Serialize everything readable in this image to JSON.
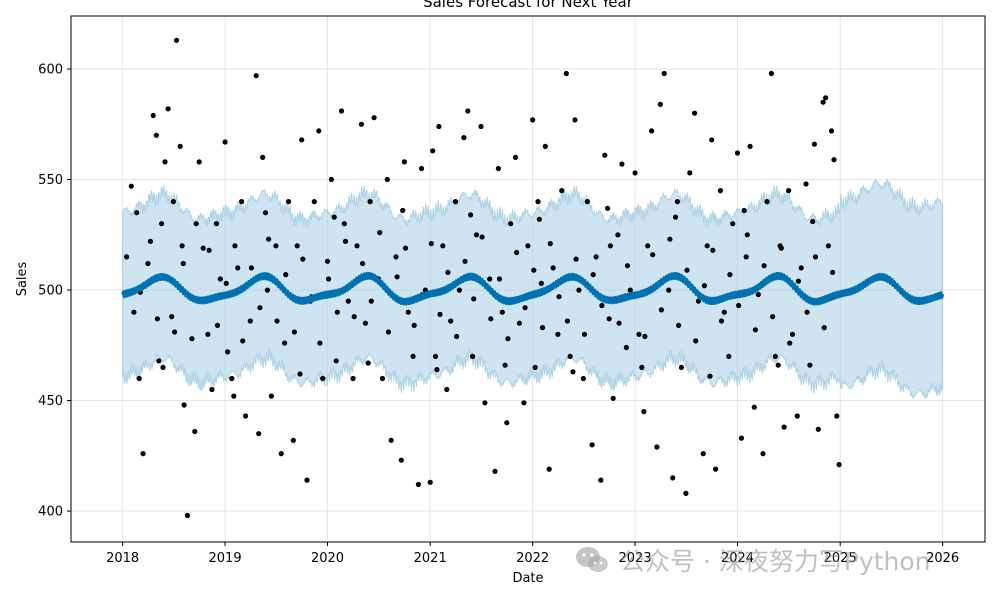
{
  "chart_data": {
    "type": "scatter",
    "title": "Sales Forecast for Next Year",
    "xlabel": "Date",
    "ylabel": "Sales",
    "xlim": [
      "2017-07-01",
      "2026-06-01"
    ],
    "ylim": [
      386,
      624
    ],
    "grid": true,
    "x_ticks": [
      "2018",
      "2019",
      "2020",
      "2021",
      "2022",
      "2023",
      "2024",
      "2025",
      "2026"
    ],
    "y_ticks": [
      400,
      450,
      500,
      550,
      600
    ],
    "forecast": {
      "start": "2018-01-01",
      "end": "2026-01-01",
      "history_end": "2024-12-31",
      "trend": 500,
      "yearly": [
        {
          "amplitude": 5,
          "period_years": 1,
          "phase_years": 0.1
        },
        {
          "amplitude": 1.5,
          "period_years": 0.5,
          "phase_years": 0.3
        }
      ],
      "weekly_amplitude": 1.4,
      "interval": {
        "lower": -37,
        "upper": 37,
        "future_lower": -42,
        "future_upper": 42
      }
    },
    "series": [
      {
        "values": [
          [
            "2018-02-01",
            547
          ],
          [
            "2018-02-10",
            490
          ],
          [
            "2018-03-01",
            460
          ],
          [
            "2018-03-15",
            426
          ],
          [
            "2018-04-01",
            512
          ],
          [
            "2018-04-20",
            579
          ],
          [
            "2018-05-01",
            570
          ],
          [
            "2018-05-10",
            468
          ],
          [
            "2018-05-20",
            530
          ],
          [
            "2018-06-01",
            558
          ],
          [
            "2018-06-12",
            582
          ],
          [
            "2018-06-25",
            488
          ],
          [
            "2018-07-01",
            540
          ],
          [
            "2018-07-12",
            613
          ],
          [
            "2018-07-25",
            565
          ],
          [
            "2018-08-01",
            520
          ],
          [
            "2018-08-08",
            448
          ],
          [
            "2018-08-20",
            398
          ],
          [
            "2018-09-01",
            497
          ],
          [
            "2018-09-15",
            436
          ],
          [
            "2018-10-01",
            558
          ],
          [
            "2018-10-15",
            519
          ],
          [
            "2018-11-01",
            480
          ],
          [
            "2018-11-15",
            455
          ],
          [
            "2018-12-01",
            530
          ],
          [
            "2018-12-15",
            505
          ],
          [
            "2019-01-01",
            567
          ],
          [
            "2019-01-10",
            472
          ],
          [
            "2019-02-01",
            452
          ],
          [
            "2019-02-15",
            510
          ],
          [
            "2019-03-01",
            540
          ],
          [
            "2019-03-15",
            443
          ],
          [
            "2019-04-01",
            486
          ],
          [
            "2019-04-22",
            597
          ],
          [
            "2019-05-01",
            435
          ],
          [
            "2019-05-15",
            560
          ],
          [
            "2019-06-01",
            500
          ],
          [
            "2019-06-15",
            452
          ],
          [
            "2019-07-01",
            520
          ],
          [
            "2019-07-20",
            426
          ],
          [
            "2019-08-01",
            476
          ],
          [
            "2019-08-15",
            540
          ],
          [
            "2019-09-01",
            432
          ],
          [
            "2019-09-15",
            520
          ],
          [
            "2019-10-01",
            568
          ],
          [
            "2019-10-20",
            414
          ],
          [
            "2019-11-01",
            495
          ],
          [
            "2019-11-15",
            540
          ],
          [
            "2019-12-01",
            572
          ],
          [
            "2019-12-15",
            460
          ],
          [
            "2020-01-01",
            513
          ],
          [
            "2020-01-15",
            550
          ],
          [
            "2020-02-01",
            468
          ],
          [
            "2020-02-20",
            581
          ],
          [
            "2020-03-01",
            530
          ],
          [
            "2020-03-15",
            495
          ],
          [
            "2020-04-01",
            460
          ],
          [
            "2020-04-15",
            520
          ],
          [
            "2020-05-01",
            575
          ],
          [
            "2020-05-15",
            485
          ],
          [
            "2020-06-01",
            540
          ],
          [
            "2020-06-15",
            578
          ],
          [
            "2020-07-01",
            505
          ],
          [
            "2020-07-15",
            460
          ],
          [
            "2020-08-01",
            550
          ],
          [
            "2020-08-15",
            432
          ],
          [
            "2020-09-01",
            515
          ],
          [
            "2020-09-20",
            423
          ],
          [
            "2020-10-01",
            558
          ],
          [
            "2020-10-15",
            490
          ],
          [
            "2020-11-01",
            470
          ],
          [
            "2020-11-20",
            412
          ],
          [
            "2020-12-01",
            555
          ],
          [
            "2020-12-15",
            500
          ],
          [
            "2021-01-01",
            413
          ],
          [
            "2021-01-10",
            563
          ],
          [
            "2021-01-20",
            470
          ],
          [
            "2021-02-01",
            574
          ],
          [
            "2021-02-15",
            520
          ],
          [
            "2021-03-01",
            455
          ],
          [
            "2021-03-15",
            486
          ],
          [
            "2021-04-01",
            540
          ],
          [
            "2021-04-15",
            500
          ],
          [
            "2021-05-01",
            569
          ],
          [
            "2021-05-15",
            581
          ],
          [
            "2021-06-01",
            470
          ],
          [
            "2021-06-15",
            525
          ],
          [
            "2021-07-01",
            574
          ],
          [
            "2021-07-15",
            449
          ],
          [
            "2021-08-01",
            505
          ],
          [
            "2021-08-20",
            418
          ],
          [
            "2021-09-01",
            555
          ],
          [
            "2021-09-15",
            490
          ],
          [
            "2021-10-01",
            440
          ],
          [
            "2021-10-15",
            530
          ],
          [
            "2021-11-01",
            560
          ],
          [
            "2021-11-15",
            485
          ],
          [
            "2021-12-01",
            449
          ],
          [
            "2021-12-15",
            520
          ],
          [
            "2022-01-01",
            577
          ],
          [
            "2022-01-10",
            465
          ],
          [
            "2022-01-20",
            540
          ],
          [
            "2022-02-01",
            503
          ],
          [
            "2022-02-15",
            565
          ],
          [
            "2022-03-01",
            419
          ],
          [
            "2022-03-15",
            510
          ],
          [
            "2022-04-01",
            480
          ],
          [
            "2022-04-15",
            545
          ],
          [
            "2022-05-01",
            598
          ],
          [
            "2022-05-15",
            470
          ],
          [
            "2022-06-01",
            577
          ],
          [
            "2022-06-15",
            500
          ],
          [
            "2022-07-01",
            460
          ],
          [
            "2022-07-15",
            540
          ],
          [
            "2022-08-01",
            430
          ],
          [
            "2022-08-15",
            515
          ],
          [
            "2022-09-01",
            414
          ],
          [
            "2022-09-15",
            561
          ],
          [
            "2022-10-01",
            487
          ],
          [
            "2022-10-15",
            451
          ],
          [
            "2022-11-01",
            525
          ],
          [
            "2022-11-15",
            557
          ],
          [
            "2022-12-01",
            474
          ],
          [
            "2022-12-15",
            500
          ],
          [
            "2023-01-01",
            553
          ],
          [
            "2023-01-15",
            480
          ],
          [
            "2023-02-01",
            445
          ],
          [
            "2023-02-15",
            520
          ],
          [
            "2023-03-01",
            572
          ],
          [
            "2023-03-20",
            429
          ],
          [
            "2023-04-01",
            584
          ],
          [
            "2023-04-15",
            598
          ],
          [
            "2023-05-01",
            500
          ],
          [
            "2023-05-15",
            415
          ],
          [
            "2023-06-01",
            540
          ],
          [
            "2023-06-15",
            465
          ],
          [
            "2023-07-01",
            408
          ],
          [
            "2023-07-15",
            553
          ],
          [
            "2023-08-01",
            580
          ],
          [
            "2023-08-15",
            495
          ],
          [
            "2023-09-01",
            426
          ],
          [
            "2023-09-15",
            520
          ],
          [
            "2023-10-01",
            568
          ],
          [
            "2023-10-15",
            419
          ],
          [
            "2023-11-01",
            545
          ],
          [
            "2023-11-15",
            490
          ],
          [
            "2023-12-01",
            470
          ],
          [
            "2023-12-15",
            530
          ],
          [
            "2024-01-01",
            562
          ],
          [
            "2024-01-15",
            433
          ],
          [
            "2024-02-01",
            515
          ],
          [
            "2024-02-15",
            565
          ],
          [
            "2024-03-01",
            447
          ],
          [
            "2024-03-15",
            498
          ],
          [
            "2024-04-01",
            426
          ],
          [
            "2024-04-15",
            540
          ],
          [
            "2024-05-01",
            598
          ],
          [
            "2024-05-15",
            470
          ],
          [
            "2024-06-01",
            520
          ],
          [
            "2024-06-15",
            438
          ],
          [
            "2024-07-01",
            545
          ],
          [
            "2024-07-15",
            480
          ],
          [
            "2024-08-01",
            443
          ],
          [
            "2024-08-15",
            510
          ],
          [
            "2024-09-01",
            548
          ],
          [
            "2024-09-15",
            466
          ],
          [
            "2024-10-01",
            566
          ],
          [
            "2024-10-15",
            437
          ],
          [
            "2024-11-01",
            585
          ],
          [
            "2024-11-10",
            587
          ],
          [
            "2024-11-20",
            520
          ],
          [
            "2024-12-01",
            572
          ],
          [
            "2024-12-10",
            559
          ],
          [
            "2024-12-20",
            443
          ],
          [
            "2024-12-28",
            421
          ],
          [
            "2018-01-15",
            515
          ],
          [
            "2018-03-05",
            499
          ],
          [
            "2018-04-10",
            522
          ],
          [
            "2018-05-05",
            487
          ],
          [
            "2018-06-05",
            506
          ],
          [
            "2018-07-05",
            481
          ],
          [
            "2018-08-05",
            512
          ],
          [
            "2018-09-05",
            478
          ],
          [
            "2018-10-05",
            495
          ],
          [
            "2018-11-05",
            518
          ],
          [
            "2018-12-05",
            484
          ],
          [
            "2019-01-05",
            503
          ],
          [
            "2019-02-05",
            520
          ],
          [
            "2019-03-05",
            477
          ],
          [
            "2019-04-05",
            510
          ],
          [
            "2019-05-05",
            492
          ],
          [
            "2019-06-05",
            523
          ],
          [
            "2019-07-05",
            486
          ],
          [
            "2019-08-05",
            507
          ],
          [
            "2019-09-05",
            481
          ],
          [
            "2019-10-05",
            514
          ],
          [
            "2019-11-05",
            497
          ],
          [
            "2019-12-05",
            476
          ],
          [
            "2020-01-05",
            505
          ],
          [
            "2020-02-05",
            490
          ],
          [
            "2020-03-05",
            522
          ],
          [
            "2020-04-05",
            488
          ],
          [
            "2020-05-05",
            512
          ],
          [
            "2020-06-05",
            495
          ],
          [
            "2020-07-05",
            526
          ],
          [
            "2020-08-05",
            481
          ],
          [
            "2020-09-05",
            506
          ],
          [
            "2020-10-05",
            519
          ],
          [
            "2020-11-05",
            484
          ],
          [
            "2020-12-05",
            498
          ],
          [
            "2021-01-05",
            521
          ],
          [
            "2021-02-05",
            489
          ],
          [
            "2021-03-05",
            508
          ],
          [
            "2021-04-05",
            479
          ],
          [
            "2021-05-05",
            513
          ],
          [
            "2021-06-05",
            496
          ],
          [
            "2021-07-05",
            524
          ],
          [
            "2021-08-05",
            487
          ],
          [
            "2021-09-05",
            505
          ],
          [
            "2021-10-05",
            478
          ],
          [
            "2021-11-05",
            517
          ],
          [
            "2021-12-05",
            492
          ],
          [
            "2022-01-05",
            509
          ],
          [
            "2022-02-05",
            483
          ],
          [
            "2022-03-05",
            521
          ],
          [
            "2022-04-05",
            497
          ],
          [
            "2022-05-05",
            486
          ],
          [
            "2022-06-05",
            514
          ],
          [
            "2022-07-05",
            480
          ],
          [
            "2022-08-05",
            507
          ],
          [
            "2022-09-05",
            493
          ],
          [
            "2022-10-05",
            520
          ],
          [
            "2022-11-05",
            485
          ],
          [
            "2022-12-05",
            511
          ],
          [
            "2023-01-05",
            498
          ],
          [
            "2023-02-05",
            479
          ],
          [
            "2023-03-05",
            516
          ],
          [
            "2023-04-05",
            491
          ],
          [
            "2023-05-05",
            523
          ],
          [
            "2023-06-05",
            484
          ],
          [
            "2023-07-05",
            509
          ],
          [
            "2023-08-05",
            477
          ],
          [
            "2023-09-05",
            502
          ],
          [
            "2023-10-05",
            518
          ],
          [
            "2023-11-05",
            486
          ],
          [
            "2023-12-05",
            507
          ],
          [
            "2024-01-05",
            493
          ],
          [
            "2024-02-05",
            525
          ],
          [
            "2024-03-05",
            482
          ],
          [
            "2024-04-05",
            511
          ],
          [
            "2024-05-05",
            488
          ],
          [
            "2024-06-05",
            519
          ],
          [
            "2024-07-05",
            476
          ],
          [
            "2024-08-05",
            504
          ],
          [
            "2024-09-05",
            490
          ],
          [
            "2024-10-05",
            515
          ],
          [
            "2024-11-05",
            483
          ],
          [
            "2024-12-05",
            508
          ],
          [
            "2018-02-20",
            535
          ],
          [
            "2018-05-25",
            465
          ],
          [
            "2018-09-20",
            530
          ],
          [
            "2019-01-25",
            460
          ],
          [
            "2019-05-25",
            535
          ],
          [
            "2019-09-25",
            462
          ],
          [
            "2020-01-25",
            533
          ],
          [
            "2020-05-25",
            467
          ],
          [
            "2020-09-25",
            536
          ],
          [
            "2021-01-25",
            464
          ],
          [
            "2021-05-25",
            534
          ],
          [
            "2021-09-25",
            466
          ],
          [
            "2022-01-25",
            532
          ],
          [
            "2022-05-25",
            463
          ],
          [
            "2022-09-25",
            537
          ],
          [
            "2023-01-25",
            465
          ],
          [
            "2023-05-25",
            533
          ],
          [
            "2023-09-25",
            461
          ],
          [
            "2024-01-25",
            536
          ],
          [
            "2024-05-25",
            466
          ],
          [
            "2024-09-25",
            531
          ]
        ]
      }
    ],
    "colors": {
      "observed": "#000000",
      "forecast_line": "#0072b2",
      "interval": "#a6cee3",
      "grid": "#e6e6e6"
    }
  },
  "watermark": {
    "text": "公众号 · 深夜努力写Python",
    "icon": "wechat-icon"
  }
}
